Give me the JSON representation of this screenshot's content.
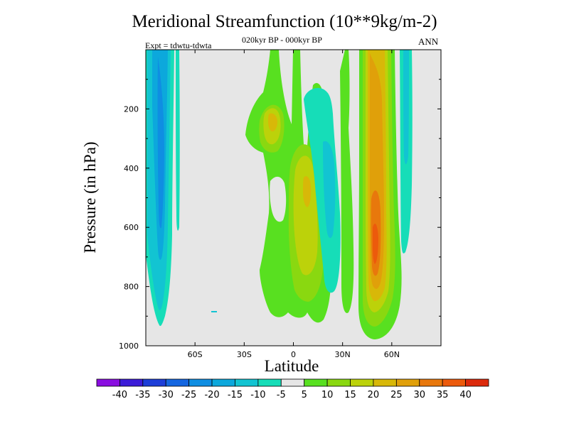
{
  "title": "Meridional Streamfunction (10**9kg/m-2)",
  "subtitle": "020kyr BP - 000kyr BP",
  "experiment": "Expt = tdwtu-tdwta",
  "season": "ANN",
  "chart_data": {
    "type": "heatmap",
    "title": "Meridional Streamfunction (10**9kg/m-2)",
    "subtitle": "020kyr BP - 000kyr BP",
    "xlabel": "Latitude",
    "ylabel": "Pressure (in hPa)",
    "xlim": [
      -90,
      90
    ],
    "ylim": [
      1000,
      0
    ],
    "x_ticks": [
      {
        "value": -60,
        "label": "60S"
      },
      {
        "value": -30,
        "label": "30S"
      },
      {
        "value": 0,
        "label": "0"
      },
      {
        "value": 30,
        "label": "30N"
      },
      {
        "value": 60,
        "label": "60N"
      }
    ],
    "y_ticks": [
      {
        "value": 200,
        "label": "200"
      },
      {
        "value": 400,
        "label": "400"
      },
      {
        "value": 600,
        "label": "600"
      },
      {
        "value": 800,
        "label": "800"
      },
      {
        "value": 1000,
        "label": "1000"
      }
    ],
    "colorbar": {
      "labels": [
        "-40",
        "-35",
        "-30",
        "-25",
        "-20",
        "-15",
        "-10",
        "-5",
        "5",
        "10",
        "15",
        "20",
        "25",
        "30",
        "35",
        "40"
      ],
      "colors": [
        "#8a0ee0",
        "#3c1cd8",
        "#1d3ed8",
        "#1466e0",
        "#0f8ee2",
        "#0ca8dc",
        "#12c4d2",
        "#16ddb8",
        "#e6e6e6",
        "#58e020",
        "#8ad810",
        "#bcd20a",
        "#d8b808",
        "#e0a00a",
        "#e8780c",
        "#ec5a0c",
        "#dc2a0c"
      ]
    },
    "features": [
      {
        "region": "60S-80S column",
        "levels_hPa": [
          0,
          940
        ],
        "peak_value": -20,
        "sign": "negative"
      },
      {
        "region": "50S thin column",
        "levels_hPa": [
          0,
          440
        ],
        "peak_value": -5,
        "sign": "negative"
      },
      {
        "region": "10S-20S upper",
        "levels_hPa": [
          0,
          500
        ],
        "peak_value": 15,
        "sign": "positive"
      },
      {
        "region": "15S lower",
        "levels_hPa": [
          550,
          930
        ],
        "peak_value": 5,
        "sign": "positive"
      },
      {
        "region": "EQ-20N column",
        "levels_hPa": [
          30,
          950
        ],
        "peak_value": 20,
        "sign": "positive"
      },
      {
        "region": "30N column",
        "levels_hPa": [
          100,
          850
        ],
        "peak_value": -15,
        "sign": "negative"
      },
      {
        "region": "45N-60N column",
        "levels_hPa": [
          0,
          990
        ],
        "peak_value": 35,
        "sign": "positive"
      },
      {
        "region": "65N thin column",
        "levels_hPa": [
          0,
          660
        ],
        "peak_value": -5,
        "sign": "negative"
      }
    ]
  }
}
